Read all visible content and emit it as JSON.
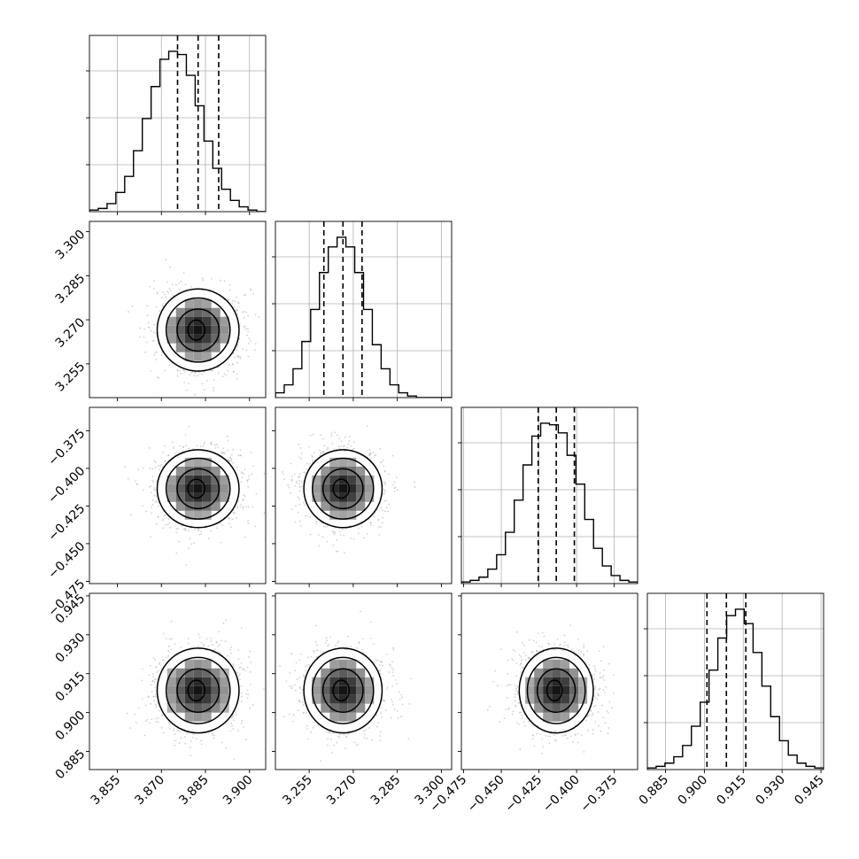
{
  "chart_data": {
    "type": "corner",
    "parameters": [
      {
        "ticks": [
          3.855,
          3.87,
          3.885,
          3.9
        ],
        "tick_labels": [
          "3.855",
          "3.870",
          "3.885",
          "3.900"
        ],
        "range": [
          3.8455,
          3.9055
        ],
        "median": 3.8825,
        "q16": 3.8755,
        "q84": 3.8895,
        "sigma": 0.0068
      },
      {
        "ticks": [
          3.255,
          3.27,
          3.285,
          3.3
        ],
        "tick_labels": [
          "3.255",
          "3.270",
          "3.285",
          "3.300"
        ],
        "range": [
          3.2435,
          3.3035
        ],
        "median": 3.2665,
        "q16": 3.26,
        "q84": 3.273,
        "sigma": 0.0065
      },
      {
        "ticks": [
          -0.475,
          -0.45,
          -0.425,
          -0.4,
          -0.375
        ],
        "tick_labels": [
          "−0.475",
          "−0.450",
          "−0.425",
          "−0.400",
          "−0.375"
        ],
        "range": [
          -0.4765,
          -0.3595
        ],
        "median": -0.4135,
        "q16": -0.4255,
        "q84": -0.4015,
        "sigma": 0.012
      },
      {
        "ticks": [
          0.885,
          0.9,
          0.915,
          0.93,
          0.945
        ],
        "tick_labels": [
          "0.885",
          "0.900",
          "0.915",
          "0.930",
          "0.945"
        ],
        "range": [
          0.878,
          0.946
        ],
        "median": 0.9085,
        "q16": 0.901,
        "q84": 0.916,
        "sigma": 0.0076
      }
    ],
    "histograms": [
      [
        1,
        2,
        5,
        12,
        22,
        38,
        58,
        78,
        95,
        100,
        98,
        85,
        66,
        44,
        27,
        14,
        7,
        3,
        1,
        0
      ],
      [
        3,
        8,
        18,
        35,
        55,
        78,
        94,
        100,
        94,
        78,
        55,
        33,
        18,
        8,
        3,
        1,
        0,
        0,
        0,
        0
      ],
      [
        1,
        2,
        4,
        9,
        18,
        32,
        52,
        74,
        92,
        100,
        99,
        94,
        80,
        62,
        40,
        22,
        11,
        5,
        2,
        1
      ],
      [
        1,
        2,
        4,
        8,
        15,
        27,
        42,
        62,
        82,
        96,
        100,
        91,
        73,
        52,
        33,
        18,
        9,
        4,
        2,
        1
      ]
    ],
    "grid": true,
    "quantile_line_style": "dashed",
    "title": "",
    "labels": []
  }
}
